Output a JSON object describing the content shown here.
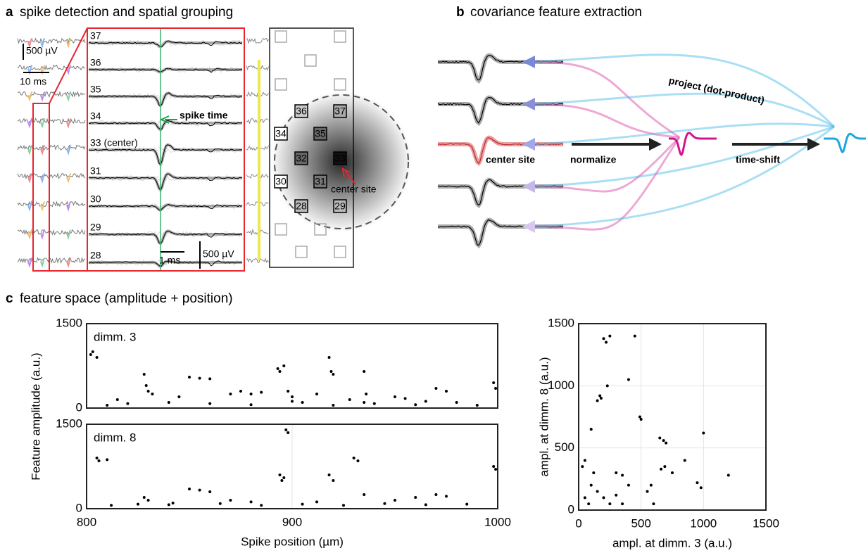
{
  "panel_a": {
    "letter": "a",
    "title": "spike detection and spatial grouping",
    "scale_voltage": "500 µV",
    "scale_time": "10 ms",
    "channels": [
      "37",
      "36",
      "35",
      "34",
      "33 (center)",
      "31",
      "30",
      "29",
      "28"
    ],
    "spike_time_label": "spike time",
    "zoom_scale_time": "1 ms",
    "zoom_scale_voltage": "500 µV",
    "sites": [
      "36",
      "37",
      "34",
      "35",
      "32",
      "33",
      "30",
      "31",
      "28",
      "29"
    ],
    "center_label": "center site"
  },
  "panel_b": {
    "letter": "b",
    "title": "covariance feature extraction",
    "project_label": "project (dot-product)",
    "center_label": "center site",
    "normalize_label": "normalize",
    "timeshift_label": "time-shift"
  },
  "panel_c": {
    "letter": "c",
    "title": "feature space (amplitude + position)",
    "ylabel": "Feature amplitude (a.u.)"
  },
  "chart_data": [
    {
      "type": "scatter",
      "annotation": "dimm. 3",
      "xlim": [
        800,
        1000
      ],
      "ylim": [
        0,
        1500
      ],
      "yticks": [
        0,
        1500
      ],
      "color": "#000000",
      "grid": true,
      "x": [
        802,
        803,
        805,
        828,
        829,
        830,
        832,
        850,
        855,
        860,
        845,
        870,
        875,
        880,
        885,
        893,
        894,
        896,
        898,
        900,
        905,
        912,
        918,
        919,
        920,
        928,
        935,
        936,
        950,
        955,
        970,
        975,
        998,
        999,
        810,
        820,
        840,
        860,
        880,
        900,
        920,
        940,
        960,
        980,
        990,
        815,
        935,
        965
      ],
      "values": [
        950,
        1000,
        900,
        600,
        400,
        300,
        250,
        550,
        530,
        520,
        200,
        250,
        300,
        250,
        280,
        700,
        650,
        750,
        300,
        200,
        100,
        250,
        900,
        650,
        600,
        150,
        650,
        250,
        200,
        170,
        350,
        300,
        450,
        350,
        50,
        80,
        100,
        80,
        60,
        120,
        50,
        80,
        60,
        100,
        50,
        150,
        100,
        120
      ]
    },
    {
      "type": "scatter",
      "annotation": "dimm. 8",
      "xlim": [
        800,
        1000
      ],
      "ylim": [
        0,
        1500
      ],
      "yticks": [
        0,
        1500
      ],
      "xticks": [
        800,
        900,
        1000
      ],
      "xlabel": "Spike position (µm)",
      "color": "#000000",
      "grid": true,
      "x": [
        805,
        806,
        810,
        828,
        830,
        850,
        855,
        860,
        870,
        880,
        894,
        895,
        897,
        898,
        896,
        918,
        920,
        930,
        932,
        935,
        950,
        960,
        970,
        975,
        998,
        999,
        812,
        825,
        840,
        865,
        885,
        905,
        925,
        945,
        965,
        985,
        842,
        912
      ],
      "values": [
        900,
        850,
        870,
        200,
        150,
        350,
        330,
        300,
        150,
        120,
        600,
        500,
        1400,
        1350,
        550,
        600,
        500,
        900,
        850,
        250,
        150,
        200,
        250,
        220,
        750,
        700,
        60,
        80,
        70,
        90,
        60,
        80,
        60,
        90,
        70,
        80,
        100,
        120
      ]
    },
    {
      "type": "scatter",
      "xlim": [
        0,
        1500
      ],
      "ylim": [
        0,
        1500
      ],
      "xticks": [
        0,
        500,
        1000,
        1500
      ],
      "yticks": [
        0,
        500,
        1000,
        1500
      ],
      "xlabel": "ampl. at dimm. 3 (a.u.)",
      "ylabel": "ampl. at dimm. 8 (a.u.)",
      "color": "#000000",
      "grid": true,
      "x": [
        200,
        220,
        250,
        180,
        170,
        150,
        490,
        500,
        680,
        700,
        650,
        690,
        660,
        950,
        980,
        550,
        580,
        400,
        350,
        300,
        100,
        450,
        50,
        30,
        100,
        150,
        200,
        250,
        80,
        50,
        300,
        120,
        350,
        600,
        750,
        850,
        400,
        230,
        1200,
        1000
      ],
      "values": [
        1380,
        1350,
        1400,
        900,
        920,
        880,
        750,
        730,
        560,
        540,
        580,
        350,
        330,
        220,
        180,
        150,
        200,
        200,
        280,
        300,
        650,
        1400,
        400,
        350,
        200,
        150,
        100,
        50,
        50,
        100,
        120,
        300,
        50,
        50,
        300,
        400,
        1050,
        1000,
        280,
        620
      ]
    }
  ]
}
